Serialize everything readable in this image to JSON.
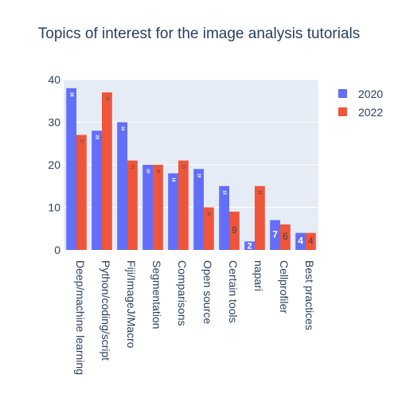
{
  "chart_data": {
    "type": "bar",
    "title": "Topics of interest for the image analysis tutorials",
    "xlabel": "",
    "ylabel": "",
    "ylim": [
      0,
      40
    ],
    "yticks": [
      0,
      10,
      20,
      30,
      40
    ],
    "categories": [
      "Deep/machine learning",
      "Python/coding/script",
      "Fiji/ImageJ/Macro",
      "Segmentation",
      "Comparisons",
      "Open source",
      "Certain tools",
      "napari",
      "Cellprofiler",
      "Best practices"
    ],
    "series": [
      {
        "name": "2020",
        "color": "#636efa",
        "values": [
          38,
          28,
          30,
          20,
          18,
          19,
          15,
          2,
          7,
          4
        ]
      },
      {
        "name": "2022",
        "color": "#ef553b",
        "values": [
          27,
          37,
          21,
          20,
          21,
          10,
          9,
          15,
          6,
          4
        ]
      }
    ],
    "grid": true,
    "legend": "top-right",
    "background": "#e5ecf6"
  }
}
